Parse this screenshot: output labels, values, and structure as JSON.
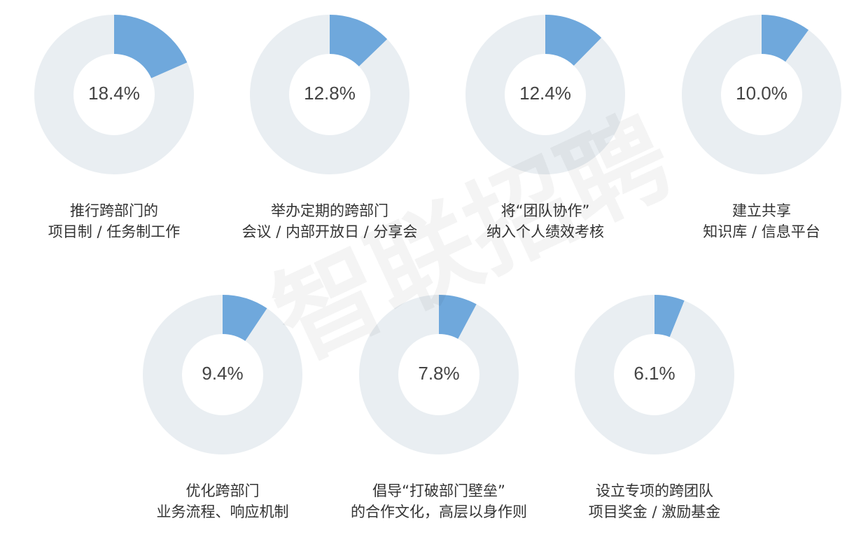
{
  "watermark": "智联招聘",
  "chart_data": [
    {
      "type": "donut",
      "title_lines": [
        "推行跨部门的",
        "项目制 / 任务制工作"
      ],
      "values": [
        18.4
      ],
      "value_labels": [
        "18.4%"
      ],
      "color": "#6fa8dc",
      "track_color": "#e9eef2"
    },
    {
      "type": "donut",
      "title_lines": [
        "举办定期的跨部门",
        "会议 / 内部开放日 / 分享会"
      ],
      "values": [
        12.8
      ],
      "value_labels": [
        "12.8%"
      ],
      "color": "#6fa8dc",
      "track_color": "#e9eef2"
    },
    {
      "type": "donut",
      "title_lines": [
        "将“团队协作”",
        "纳入个人绩效考核"
      ],
      "values": [
        12.4
      ],
      "value_labels": [
        "12.4%"
      ],
      "color": "#6fa8dc",
      "track_color": "#e9eef2"
    },
    {
      "type": "donut",
      "title_lines": [
        "建立共享",
        "知识库 / 信息平台"
      ],
      "values": [
        10.0
      ],
      "value_labels": [
        "10.0%"
      ],
      "color": "#6fa8dc",
      "track_color": "#e9eef2"
    },
    {
      "type": "donut",
      "title_lines": [
        "优化跨部门",
        "业务流程、响应机制"
      ],
      "values": [
        9.4
      ],
      "value_labels": [
        "9.4%"
      ],
      "color": "#6fa8dc",
      "track_color": "#e9eef2"
    },
    {
      "type": "donut",
      "title_lines": [
        "倡导“打破部门壁垒”",
        "的合作文化，高层以身作则"
      ],
      "values": [
        7.8
      ],
      "value_labels": [
        "7.8%"
      ],
      "color": "#6fa8dc",
      "track_color": "#e9eef2"
    },
    {
      "type": "donut",
      "title_lines": [
        "设立专项的跨团队",
        "项目奖金 / 激励基金"
      ],
      "values": [
        6.1
      ],
      "value_labels": [
        "6.1%"
      ],
      "color": "#6fa8dc",
      "track_color": "#e9eef2"
    }
  ]
}
